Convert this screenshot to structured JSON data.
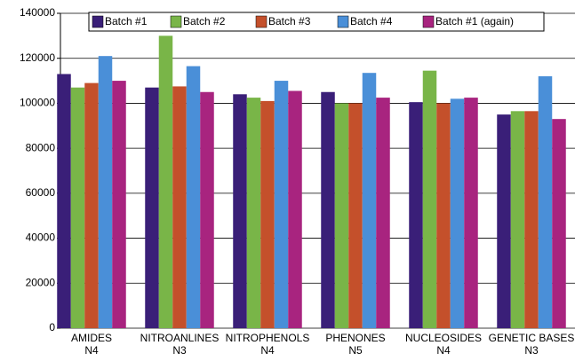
{
  "chart_data": {
    "type": "bar",
    "categories": [
      "AMIDES",
      "NITROANLINES",
      "NITROPHENOLS",
      "PHENONES",
      "NUCLEOSIDES",
      "GENETIC BASES"
    ],
    "category_codes": [
      "N4",
      "N3",
      "N4",
      "N5",
      "N4",
      "N3"
    ],
    "series": [
      {
        "name": "Batch #1",
        "color": "#3a1f78",
        "values": [
          113000,
          107000,
          104000,
          105000,
          100500,
          95000
        ]
      },
      {
        "name": "Batch #2",
        "color": "#79b548",
        "values": [
          107000,
          130000,
          102500,
          100000,
          114500,
          96500
        ]
      },
      {
        "name": "Batch #3",
        "color": "#c4502b",
        "values": [
          109000,
          107500,
          101000,
          100000,
          100000,
          96500
        ]
      },
      {
        "name": "Batch #4",
        "color": "#4a8fd8",
        "values": [
          121000,
          116500,
          110000,
          113500,
          102000,
          112000
        ]
      },
      {
        "name": "Batch #1 (again)",
        "color": "#a8247f",
        "values": [
          110000,
          105000,
          105500,
          102500,
          102500,
          93000
        ]
      }
    ],
    "ylim": [
      0,
      140000
    ],
    "yticks": [
      0,
      20000,
      40000,
      60000,
      80000,
      100000,
      120000,
      140000
    ],
    "grid": true,
    "legend": "top"
  }
}
